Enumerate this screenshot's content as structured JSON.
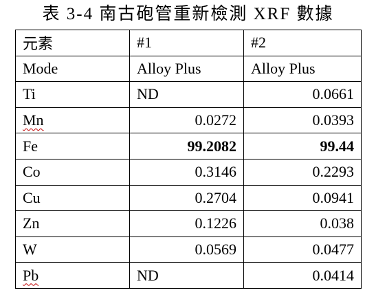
{
  "title": "表 3-4  南古砲管重新檢測 XRF 數據",
  "table": {
    "headers": [
      "元素",
      "#1",
      "#2"
    ],
    "rows": [
      {
        "element": "Mode",
        "s1": "Alloy Plus",
        "s2": "Alloy Plus"
      },
      {
        "element": "Ti",
        "s1": "ND",
        "s2": "0.0661"
      },
      {
        "element": "Mn",
        "s1": "0.0272",
        "s2": "0.0393"
      },
      {
        "element": "Fe",
        "s1": "99.2082",
        "s2": "99.44"
      },
      {
        "element": "Co",
        "s1": "0.3146",
        "s2": "0.2293"
      },
      {
        "element": "Cu",
        "s1": "0.2704",
        "s2": "0.0941"
      },
      {
        "element": "Zn",
        "s1": "0.1226",
        "s2": "0.038"
      },
      {
        "element": "W",
        "s1": "0.0569",
        "s2": "0.0477"
      },
      {
        "element": "Pb",
        "s1": "ND",
        "s2": "0.0414"
      }
    ]
  },
  "colors": {
    "text": "#000000",
    "border": "#000000",
    "spellcheck_underline": "#c00000"
  }
}
